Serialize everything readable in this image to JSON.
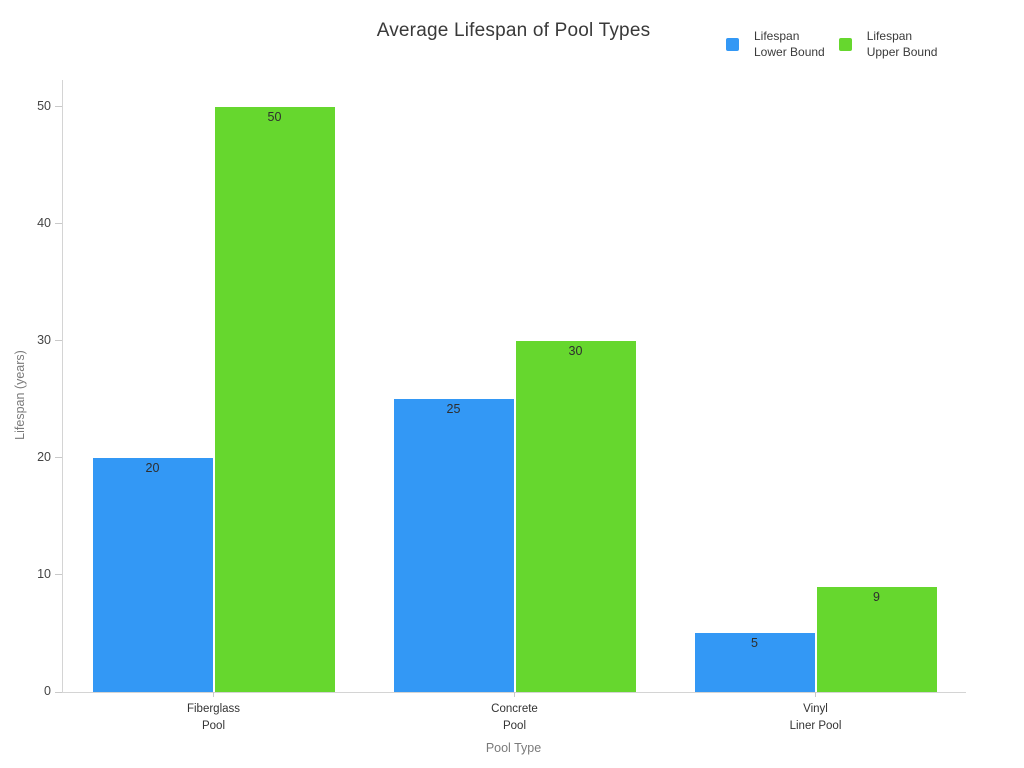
{
  "chart_data": {
    "type": "bar",
    "title": "Average Lifespan of Pool Types",
    "xlabel": "Pool Type",
    "ylabel": "Lifespan (years)",
    "categories": [
      "Fiberglass\nPool",
      "Concrete\nPool",
      "Vinyl\nLiner Pool"
    ],
    "series": [
      {
        "name": "Lifespan\nLower Bound",
        "color": "#3398F5",
        "values": [
          20,
          25,
          5
        ]
      },
      {
        "name": "Lifespan\nUpper Bound",
        "color": "#66D72E",
        "values": [
          50,
          30,
          9
        ]
      }
    ],
    "ylim": [
      0,
      52.3
    ],
    "yticks": [
      0,
      10,
      20,
      30,
      40,
      50
    ],
    "grid": false,
    "legend_position": "top-right",
    "bar_value_labels": true,
    "colors": {
      "axis_line": "#d4d4d4",
      "tick": "#c9c9c9",
      "tick_label": "#444444",
      "category_label": "#333333",
      "axis_title": "#7a7a7a",
      "title": "#393939",
      "value_label": "#2e2e2e",
      "background": "#ffffff"
    }
  }
}
